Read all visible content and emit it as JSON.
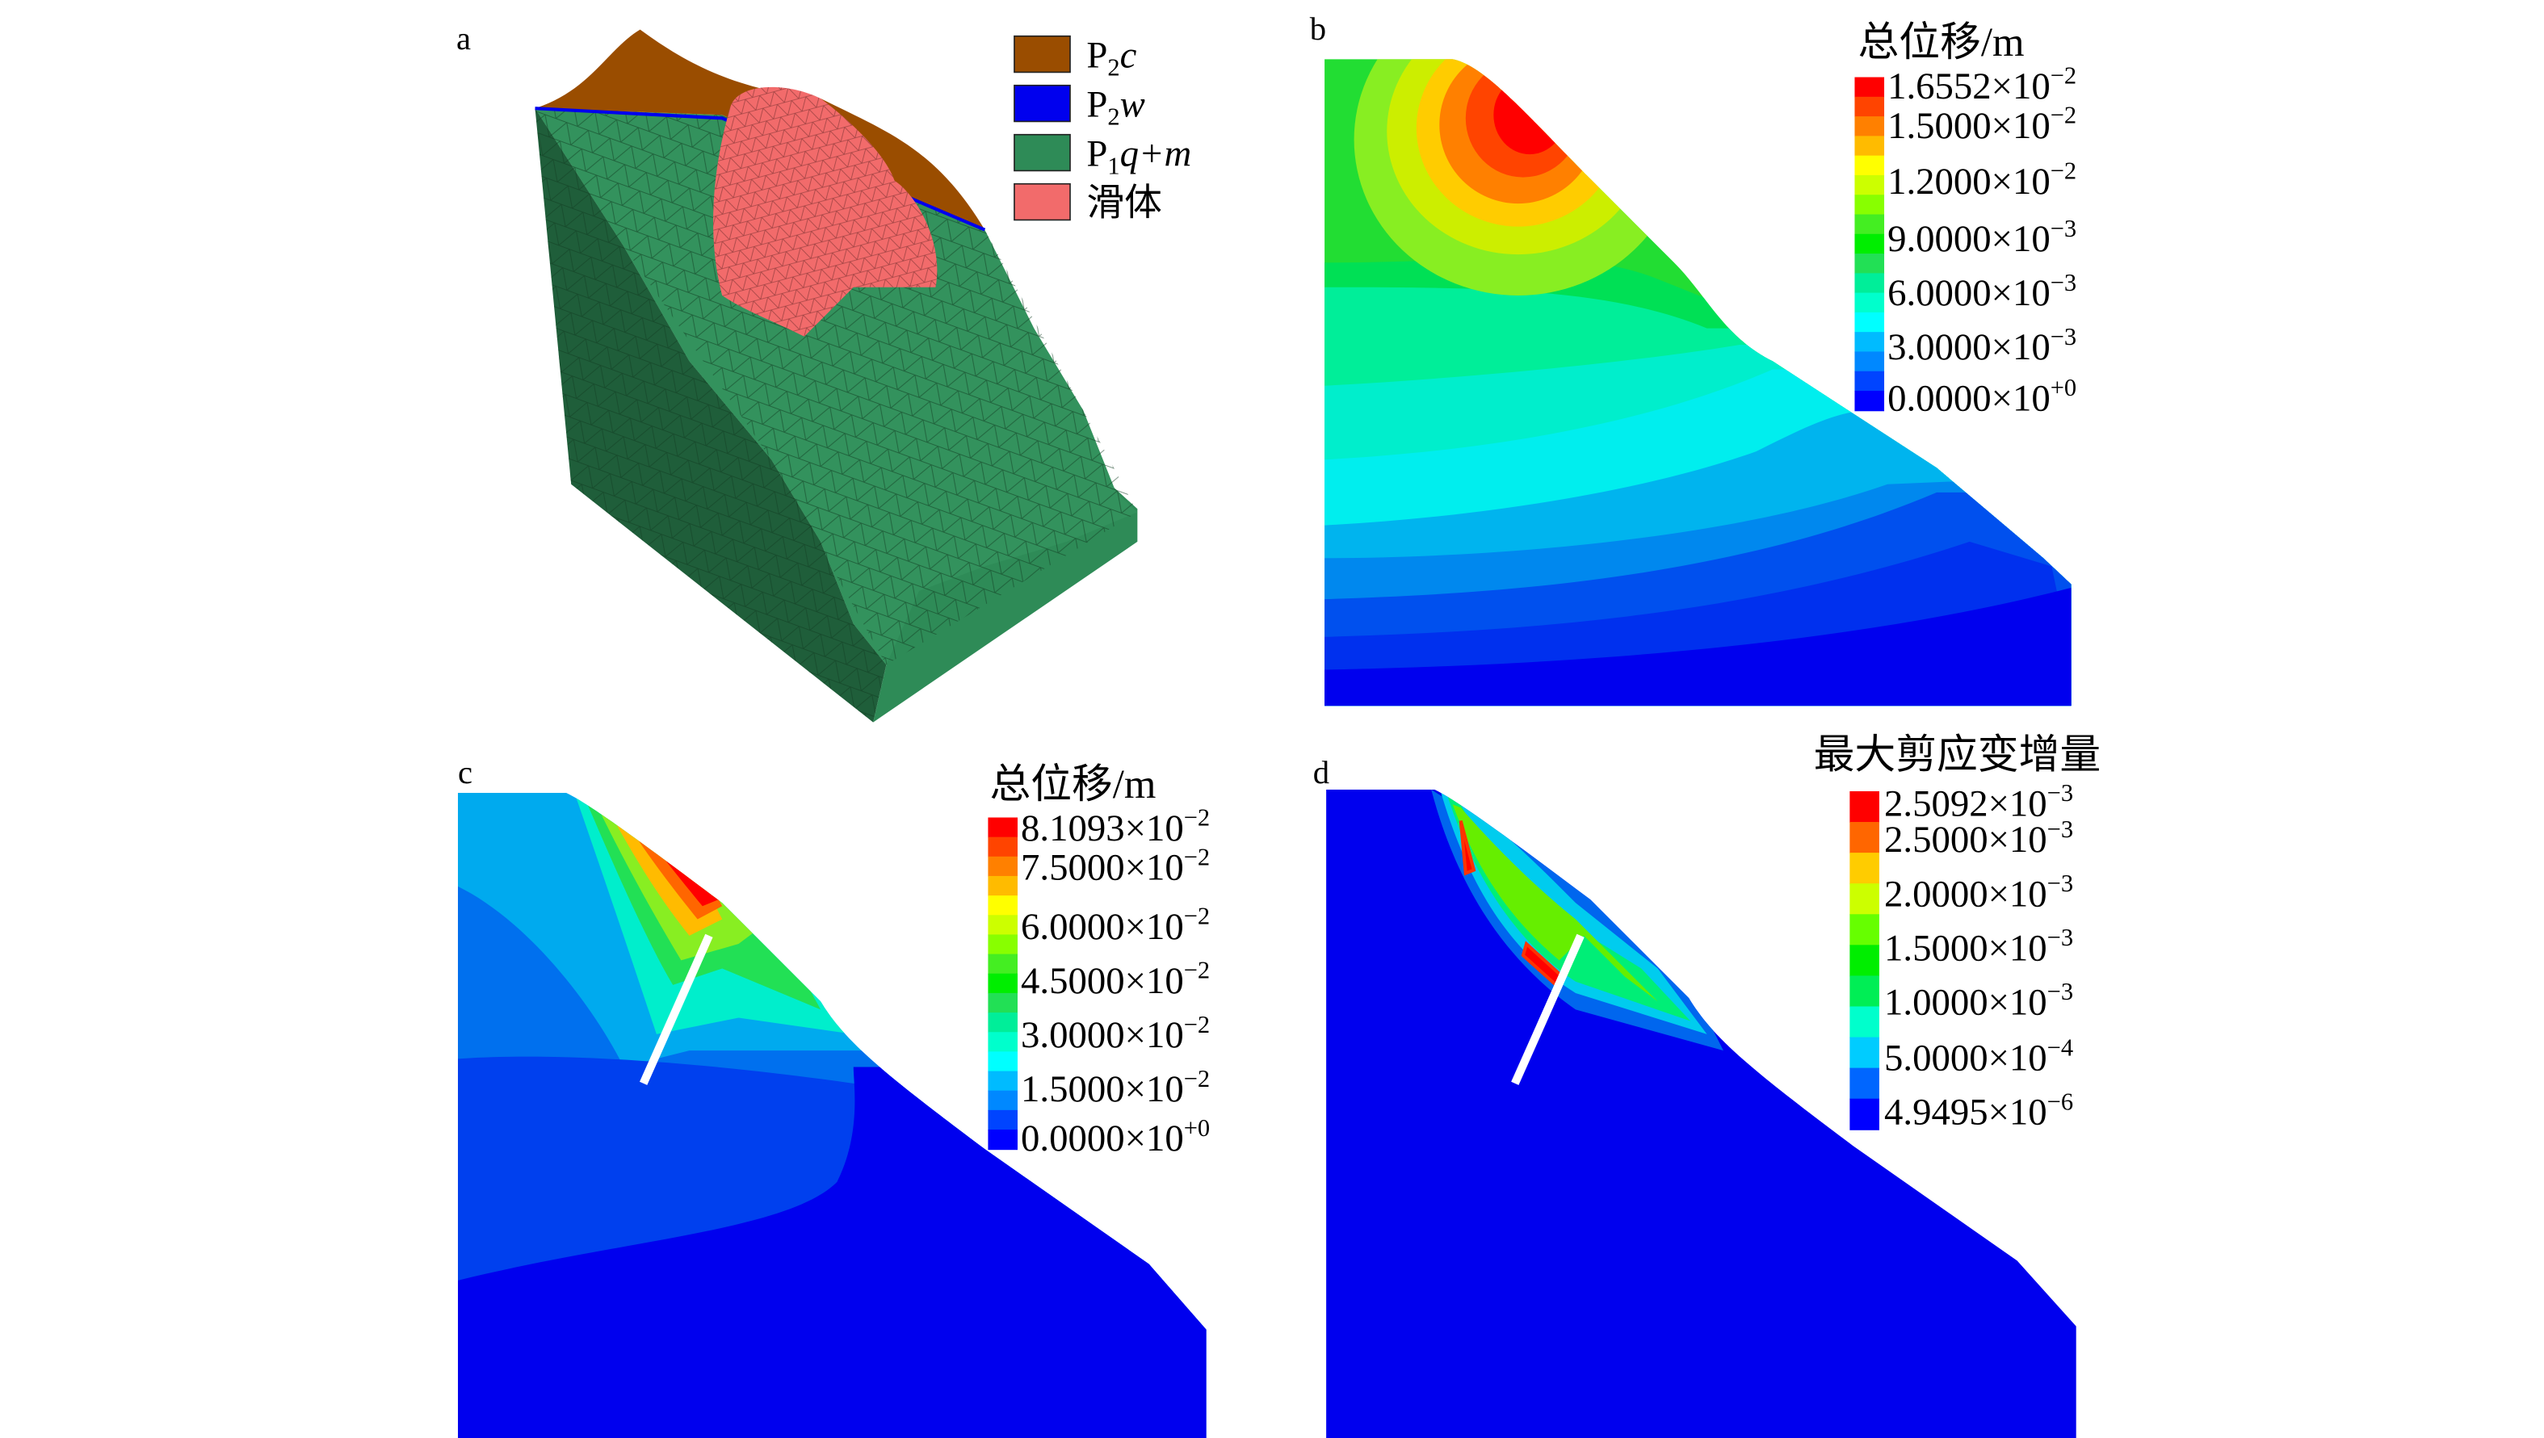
{
  "panels": {
    "a": {
      "label": "a",
      "legend": [
        {
          "main": "P",
          "sub": "2",
          "ital": "c",
          "color": "#9a4d00"
        },
        {
          "main": "P",
          "sub": "2",
          "ital": "w",
          "color": "#0000ee"
        },
        {
          "main": "P",
          "sub": "1",
          "ital": "q+m",
          "color": "#2e8b57"
        },
        {
          "main": "滑体",
          "sub": "",
          "ital": "",
          "color": "#f26b6b"
        }
      ]
    },
    "b": {
      "label": "b",
      "title": "总位移/m",
      "colors": [
        "#ff0000",
        "#ff4400",
        "#ff8000",
        "#ffbb00",
        "#ffff00",
        "#ccff00",
        "#88ff00",
        "#44ee22",
        "#00ee00",
        "#22e055",
        "#00ee99",
        "#00ffcc",
        "#00ffff",
        "#00bbff",
        "#0088ff",
        "#0044ff",
        "#0000ff"
      ],
      "ticks": [
        {
          "m": "1.6552",
          "e": "−2"
        },
        {
          "m": "1.5000",
          "e": "−2"
        },
        {
          "m": "1.2000",
          "e": "−2"
        },
        {
          "m": "9.0000",
          "e": "−3"
        },
        {
          "m": "6.0000",
          "e": "−3"
        },
        {
          "m": "3.0000",
          "e": "−3"
        },
        {
          "m": "0.0000",
          "e": "+0"
        }
      ]
    },
    "c": {
      "label": "c",
      "title": "总位移/m",
      "colors": [
        "#ff0000",
        "#ff4400",
        "#ff8000",
        "#ffbb00",
        "#ffff00",
        "#ccff00",
        "#88ff00",
        "#44ee22",
        "#00ee00",
        "#22e055",
        "#00ee99",
        "#00ffcc",
        "#00ffff",
        "#00bbff",
        "#0088ff",
        "#0044ff",
        "#0000ff"
      ],
      "ticks": [
        {
          "m": "8.1093",
          "e": "−2"
        },
        {
          "m": "7.5000",
          "e": "−2"
        },
        {
          "m": "6.0000",
          "e": "−2"
        },
        {
          "m": "4.5000",
          "e": "−2"
        },
        {
          "m": "3.0000",
          "e": "−2"
        },
        {
          "m": "1.5000",
          "e": "−2"
        },
        {
          "m": "0.0000",
          "e": "+0"
        }
      ]
    },
    "d": {
      "label": "d",
      "title": "最大剪应变增量",
      "colors": [
        "#ff0000",
        "#ff6600",
        "#ffcc00",
        "#ccff00",
        "#66ff00",
        "#00ee00",
        "#00ee55",
        "#00ffcc",
        "#00ccff",
        "#0066ff",
        "#0000ff"
      ],
      "ticks": [
        {
          "m": "2.5092",
          "e": "−3"
        },
        {
          "m": "2.5000",
          "e": "−3"
        },
        {
          "m": "2.0000",
          "e": "−3"
        },
        {
          "m": "1.5000",
          "e": "−3"
        },
        {
          "m": "1.0000",
          "e": "−3"
        },
        {
          "m": "5.0000",
          "e": "−4"
        },
        {
          "m": "4.9495",
          "e": "−6"
        }
      ]
    }
  }
}
